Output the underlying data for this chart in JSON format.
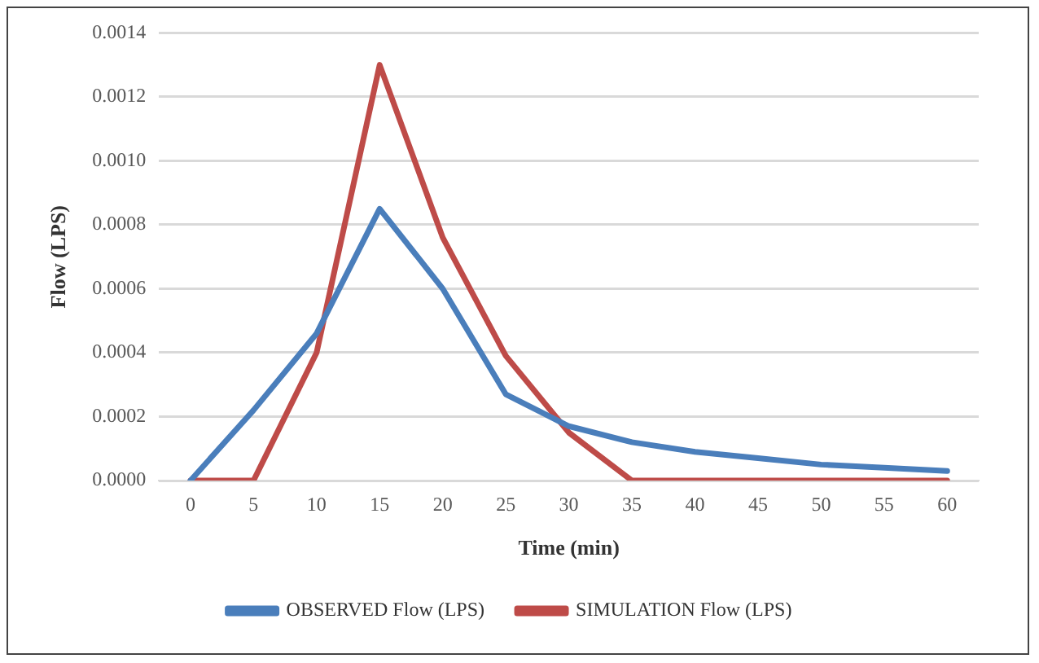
{
  "chart_data": {
    "type": "line",
    "xlabel": "Time (min)",
    "ylabel": "Flow (LPS)",
    "categories": [
      "0",
      "5",
      "10",
      "15",
      "20",
      "25",
      "30",
      "35",
      "40",
      "45",
      "50",
      "55",
      "60"
    ],
    "series": [
      {
        "name": "OBSERVED Flow (LPS)",
        "color": "#4a7ebb",
        "values": [
          0,
          0.00022,
          0.00046,
          0.00085,
          0.0006,
          0.00027,
          0.00017,
          0.00012,
          9e-05,
          7e-05,
          5e-05,
          4e-05,
          3e-05
        ]
      },
      {
        "name": "SIMULATION Flow (LPS)",
        "color": "#be4b48",
        "values": [
          0,
          0,
          0.0004,
          0.0013,
          0.00076,
          0.00039,
          0.00015,
          0,
          0,
          0,
          0,
          0,
          0
        ]
      }
    ],
    "ylim": [
      0,
      0.0014
    ],
    "yticks": [
      {
        "value": 0,
        "label": "0.0000"
      },
      {
        "value": 0.0002,
        "label": "0.0002"
      },
      {
        "value": 0.0004,
        "label": "0.0004"
      },
      {
        "value": 0.0006,
        "label": "0.0006"
      },
      {
        "value": 0.0008,
        "label": "0.0008"
      },
      {
        "value": 0.001,
        "label": "0.0010"
      },
      {
        "value": 0.0012,
        "label": "0.0012"
      },
      {
        "value": 0.0014,
        "label": "0.0014"
      }
    ],
    "grid": "y",
    "legend": "bottom",
    "marker": "none",
    "line_style": "solid"
  }
}
